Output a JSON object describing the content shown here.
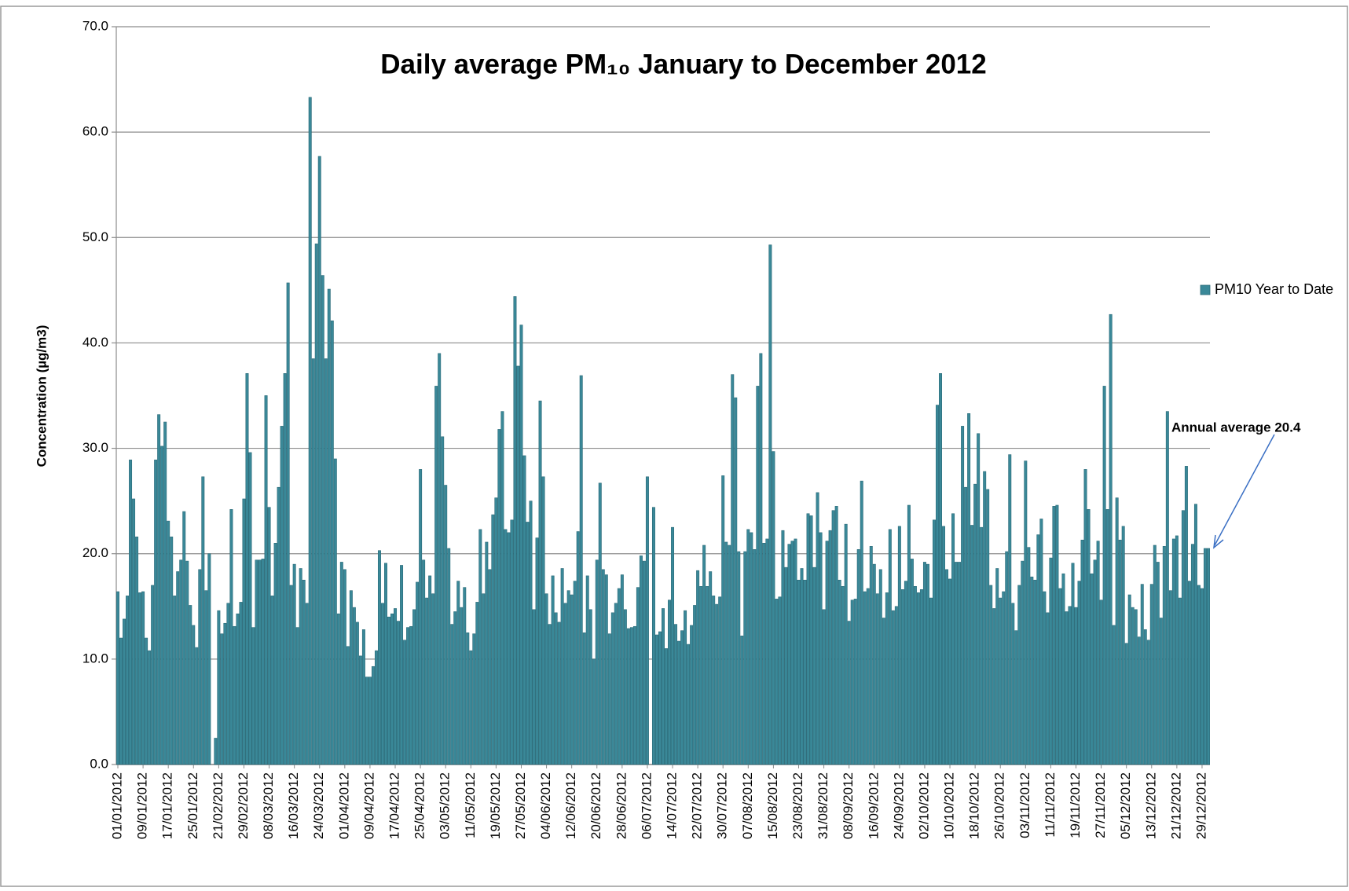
{
  "chart_data": {
    "type": "bar",
    "title": "Daily average PM₁₀ January to December 2012",
    "y_label": "Concentration (µg/m3)",
    "annotation": "Annual average 20.4",
    "legend_position": "right",
    "grid": true,
    "ylim": [
      0,
      70
    ],
    "yticks": [
      {
        "value": 0,
        "label": "0.0"
      },
      {
        "value": 10,
        "label": "10.0"
      },
      {
        "value": 20,
        "label": "20.0"
      },
      {
        "value": 30,
        "label": "30.0"
      },
      {
        "value": 40,
        "label": "40.0"
      },
      {
        "value": 50,
        "label": "50.0"
      },
      {
        "value": 60,
        "label": "60.0"
      },
      {
        "value": 70,
        "label": "70.0"
      }
    ],
    "categories": [
      "01/01/2012",
      null,
      null,
      null,
      null,
      null,
      null,
      null,
      "09/01/2012",
      null,
      null,
      null,
      null,
      null,
      null,
      null,
      "17/01/2012",
      null,
      null,
      null,
      null,
      null,
      null,
      null,
      "25/01/2012",
      null,
      null,
      null,
      null,
      null,
      null,
      null,
      "21/02/2012",
      null,
      null,
      null,
      null,
      null,
      null,
      null,
      "29/02/2012",
      null,
      null,
      null,
      null,
      null,
      null,
      null,
      "08/03/2012",
      null,
      null,
      null,
      null,
      null,
      null,
      null,
      "16/03/2012",
      null,
      null,
      null,
      null,
      null,
      null,
      null,
      "24/03/2012",
      null,
      null,
      null,
      null,
      null,
      null,
      null,
      "01/04/2012",
      null,
      null,
      null,
      null,
      null,
      null,
      null,
      "09/04/2012",
      null,
      null,
      null,
      null,
      null,
      null,
      null,
      "17/04/2012",
      null,
      null,
      null,
      null,
      null,
      null,
      null,
      "25/04/2012",
      null,
      null,
      null,
      null,
      null,
      null,
      null,
      "03/05/2012",
      null,
      null,
      null,
      null,
      null,
      null,
      null,
      "11/05/2012",
      null,
      null,
      null,
      null,
      null,
      null,
      null,
      "19/05/2012",
      null,
      null,
      null,
      null,
      null,
      null,
      null,
      "27/05/2012",
      null,
      null,
      null,
      null,
      null,
      null,
      null,
      "04/06/2012",
      null,
      null,
      null,
      null,
      null,
      null,
      null,
      "12/06/2012",
      null,
      null,
      null,
      null,
      null,
      null,
      null,
      "20/06/2012",
      null,
      null,
      null,
      null,
      null,
      null,
      null,
      "28/06/2012",
      null,
      null,
      null,
      null,
      null,
      null,
      null,
      "06/07/2012",
      null,
      null,
      null,
      null,
      null,
      null,
      null,
      "14/07/2012",
      null,
      null,
      null,
      null,
      null,
      null,
      null,
      "22/07/2012",
      null,
      null,
      null,
      null,
      null,
      null,
      null,
      "30/07/2012",
      null,
      null,
      null,
      null,
      null,
      null,
      null,
      "07/08/2012",
      null,
      null,
      null,
      null,
      null,
      null,
      null,
      "15/08/2012",
      null,
      null,
      null,
      null,
      null,
      null,
      null,
      "23/08/2012",
      null,
      null,
      null,
      null,
      null,
      null,
      null,
      "31/08/2012",
      null,
      null,
      null,
      null,
      null,
      null,
      null,
      "08/09/2012",
      null,
      null,
      null,
      null,
      null,
      null,
      null,
      "16/09/2012",
      null,
      null,
      null,
      null,
      null,
      null,
      null,
      "24/09/2012",
      null,
      null,
      null,
      null,
      null,
      null,
      null,
      "02/10/2012",
      null,
      null,
      null,
      null,
      null,
      null,
      null,
      "10/10/2012",
      null,
      null,
      null,
      null,
      null,
      null,
      null,
      "18/10/2012",
      null,
      null,
      null,
      null,
      null,
      null,
      null,
      "26/10/2012",
      null,
      null,
      null,
      null,
      null,
      null,
      null,
      "03/11/2012",
      null,
      null,
      null,
      null,
      null,
      null,
      null,
      "11/11/2012",
      null,
      null,
      null,
      null,
      null,
      null,
      null,
      "19/11/2012",
      null,
      null,
      null,
      null,
      null,
      null,
      null,
      "27/11/2012",
      null,
      null,
      null,
      null,
      null,
      null,
      null,
      "05/12/2012",
      null,
      null,
      null,
      null,
      null,
      null,
      null,
      "13/12/2012",
      null,
      null,
      null,
      null,
      null,
      null,
      null,
      "21/12/2012",
      null,
      null,
      null,
      null,
      null,
      null,
      null,
      "29/12/2012",
      null,
      null
    ],
    "series": [
      {
        "name": "PM10 Year to Date",
        "color": "#3a8898",
        "values": [
          16.4,
          12,
          13.8,
          16,
          28.9,
          25.2,
          21.6,
          16.3,
          16.4,
          12,
          10.8,
          17,
          28.9,
          33.2,
          30.2,
          32.5,
          23.1,
          21.6,
          16,
          18.3,
          19.4,
          24,
          19.3,
          15.1,
          13.2,
          11.1,
          18.5,
          27.3,
          16.5,
          20,
          null,
          2.5,
          14.6,
          12.4,
          13.4,
          15.3,
          24.2,
          13.1,
          14.3,
          15.4,
          25.2,
          37.1,
          29.6,
          13,
          19.4,
          19.4,
          19.5,
          35,
          24.4,
          16,
          21,
          26.3,
          32.1,
          37.1,
          45.7,
          17,
          19,
          13,
          18.6,
          17.5,
          15.3,
          63.3,
          38.5,
          49.4,
          57.7,
          46.4,
          38.5,
          45.1,
          42.1,
          29,
          14.3,
          19.2,
          18.5,
          11.2,
          16.5,
          14.9,
          13.5,
          10.3,
          12.8,
          8.3,
          8.3,
          9.3,
          10.8,
          20.3,
          15.3,
          19.1,
          14,
          14.3,
          14.8,
          13.6,
          18.9,
          11.8,
          13,
          13.1,
          14.7,
          17.3,
          28,
          19.4,
          15.8,
          17.9,
          16.2,
          35.9,
          39,
          31.1,
          26.5,
          20.5,
          13.3,
          14.5,
          17.4,
          14.9,
          16.8,
          12.5,
          10.8,
          12.4,
          15.4,
          22.3,
          16.2,
          21.1,
          18.5,
          23.7,
          25.3,
          31.8,
          33.5,
          22.3,
          22,
          23.2,
          44.4,
          37.8,
          41.7,
          29.3,
          23,
          25,
          14.7,
          21.5,
          34.5,
          27.3,
          16.2,
          13.3,
          17.9,
          14.4,
          13.5,
          18.6,
          15.3,
          16.5,
          16.1,
          17.4,
          22.1,
          36.9,
          12.5,
          17.9,
          14.7,
          10,
          19.4,
          26.7,
          18.5,
          18,
          12.4,
          14.4,
          15.3,
          16.7,
          18,
          14.7,
          12.9,
          13,
          13.1,
          16.8,
          19.8,
          19.3,
          27.3,
          null,
          24.4,
          12.3,
          12.6,
          14.8,
          11,
          15.6,
          22.5,
          13.3,
          11.7,
          12.7,
          14.6,
          11.4,
          13.2,
          15.1,
          18.4,
          16.9,
          20.8,
          16.9,
          18.3,
          16,
          15.2,
          15.9,
          27.4,
          21.1,
          20.8,
          37,
          34.8,
          20.2,
          12.2,
          20.2,
          22.3,
          22,
          20.4,
          35.9,
          39,
          21,
          21.4,
          49.3,
          29.7,
          15.7,
          15.9,
          22.2,
          18.7,
          20.9,
          21.2,
          21.4,
          17.5,
          18.6,
          17.5,
          23.8,
          23.6,
          18.7,
          25.8,
          22,
          14.7,
          21.2,
          22.2,
          24.1,
          24.5,
          17.5,
          16.9,
          22.8,
          13.6,
          15.6,
          15.7,
          20.4,
          26.9,
          16.4,
          16.7,
          20.7,
          19,
          16.2,
          18.5,
          13.9,
          16.3,
          22.3,
          14.6,
          15,
          22.6,
          16.6,
          17.4,
          24.6,
          19.5,
          16.9,
          16.3,
          16.6,
          19.2,
          19,
          15.8,
          23.2,
          34.1,
          37.1,
          22.6,
          18.5,
          17.6,
          23.8,
          19.2,
          19.2,
          32.1,
          26.3,
          33.3,
          22.7,
          26.6,
          31.4,
          22.5,
          27.8,
          26.1,
          17,
          14.8,
          18.6,
          15.8,
          16.4,
          20.2,
          29.4,
          15.3,
          12.7,
          17,
          19.3,
          28.8,
          20.6,
          17.8,
          17.5,
          21.8,
          23.3,
          16.4,
          14.4,
          19.6,
          24.5,
          24.6,
          16.7,
          18.1,
          14.5,
          15,
          19.1,
          14.9,
          17.4,
          21.3,
          28,
          24.2,
          18.1,
          19.4,
          21.2,
          15.6,
          35.9,
          24.2,
          42.7,
          13.2,
          25.3,
          21.3,
          22.6,
          11.5,
          16.1,
          14.9,
          14.7,
          12.1,
          17.1,
          12.8,
          11.8,
          17.1,
          20.8,
          19.2,
          13.9,
          20.7,
          33.5,
          16.5,
          21.4,
          21.7,
          15.8,
          24.1,
          28.3,
          17.4,
          20.9,
          24.7,
          17,
          16.7,
          20.5,
          20.5
        ]
      }
    ]
  }
}
